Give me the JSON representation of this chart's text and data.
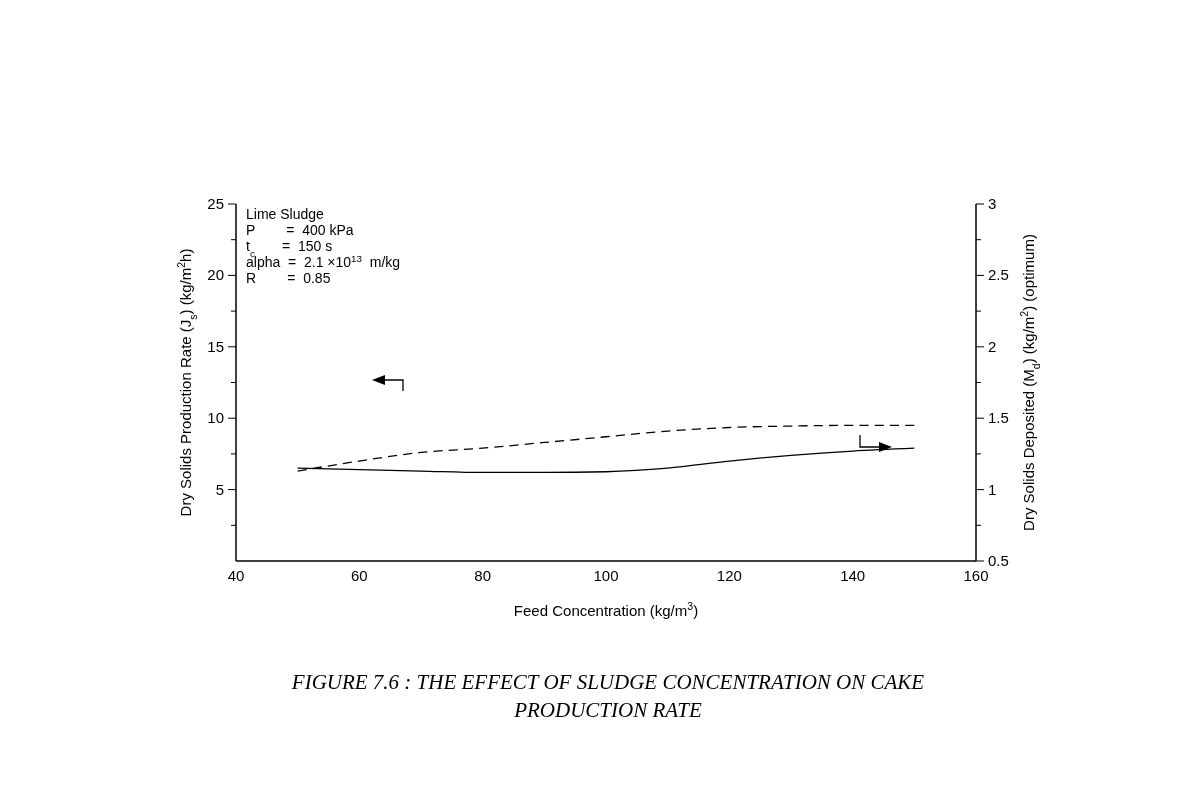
{
  "chart_data": {
    "type": "line",
    "title": "FIGURE 7.6  :  THE EFFECT OF SLUDGE CONCENTRATION ON CAKE PRODUCTION RATE",
    "xlabel": "Feed Concentration (kg/m$^{3}$)",
    "ylabel": "Dry Solids Production Rate (J$_{s}$) (kg/m$^{2}$h)",
    "y2label": "Dry Solids Deposited (M$_{d}$) (kg/m$^{2}$) (optimum)",
    "x": [
      50,
      60,
      70,
      80,
      90,
      100,
      110,
      120,
      130,
      140,
      150
    ],
    "series": [
      {
        "color": "#000000",
        "line_style": "dashed",
        "values": [
          6.3,
          7.0,
          7.6,
          7.9,
          8.3,
          8.7,
          9.1,
          9.35,
          9.45,
          9.5,
          9.5
        ]
      },
      {
        "color": "#000000",
        "line_style": "solid",
        "axis": "y2",
        "values": [
          1.15,
          1.14,
          1.13,
          1.12,
          1.12,
          1.125,
          1.15,
          1.2,
          1.24,
          1.27,
          1.29
        ]
      }
    ],
    "xlim": [
      40,
      160
    ],
    "xticks": [
      40,
      60,
      80,
      100,
      120,
      140,
      160
    ],
    "ylim": [
      0,
      25
    ],
    "yticks": [
      {
        "value": 2.5,
        "label": null
      },
      5,
      {
        "value": 7.5,
        "label": null
      },
      10,
      {
        "value": 12.5,
        "label": null
      },
      15,
      {
        "value": 17.5,
        "label": null
      },
      20,
      {
        "value": 22.5,
        "label": null
      },
      25
    ],
    "y2lim": [
      0.5,
      3
    ],
    "y2ticks": [
      0.5,
      {
        "value": 0.75,
        "label": null
      },
      1,
      {
        "value": 1.25,
        "label": null
      },
      1.5,
      {
        "value": 1.75,
        "label": null
      },
      2,
      {
        "value": 2.25,
        "label": null
      },
      2.5,
      {
        "value": 2.75,
        "label": null
      },
      3
    ],
    "annotations": [
      "Lime Sludge",
      "P        =  400 kPa",
      "t$_{c}$       =  150 s",
      "alpha  =  2.1 ×10$^{13}$  m/kg",
      "R        =  0.85"
    ],
    "grid": false
  }
}
